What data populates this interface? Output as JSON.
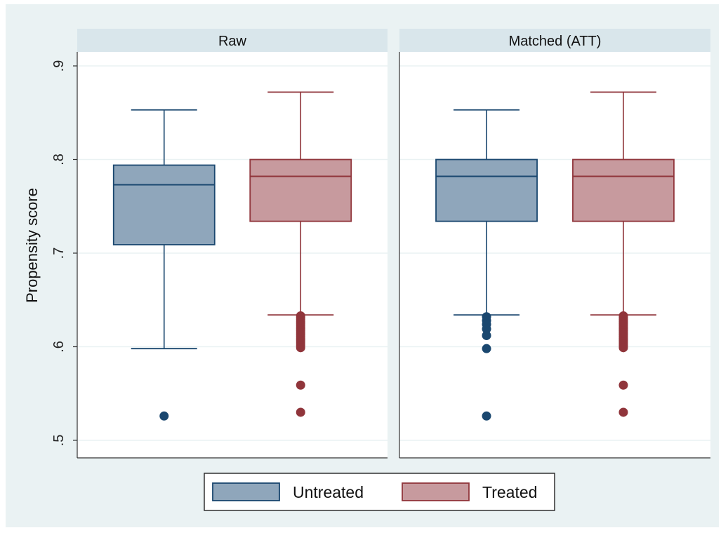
{
  "colors": {
    "outer_background": "#eaf2f3",
    "plot_background": "#ffffff",
    "strip_background": "#d9e6eb",
    "gridline": "#eaf2f3",
    "untreated_fill": "#8fa6bb",
    "untreated_line": "#1a476f",
    "treated_fill": "#c79a9e",
    "treated_line": "#90353b"
  },
  "chart_data": {
    "type": "box",
    "ylabel": "Propensity score",
    "ylim": [
      0.5,
      0.9
    ],
    "yticks": [
      {
        "value": 0.5,
        "label": ".5"
      },
      {
        "value": 0.6,
        "label": ".6"
      },
      {
        "value": 0.7,
        "label": ".7"
      },
      {
        "value": 0.8,
        "label": ".8"
      },
      {
        "value": 0.9,
        "label": ".9"
      }
    ],
    "grid": true,
    "legend_position": "bottom",
    "legend": [
      {
        "label": "Untreated",
        "series": "untreated"
      },
      {
        "label": "Treated",
        "series": "treated"
      }
    ],
    "panels": [
      {
        "title": "Raw",
        "boxes": [
          {
            "series": "untreated",
            "whisker_low": 0.598,
            "q1": 0.709,
            "median": 0.773,
            "q3": 0.794,
            "whisker_high": 0.853,
            "outliers": [
              0.526
            ]
          },
          {
            "series": "treated",
            "whisker_low": 0.634,
            "q1": 0.734,
            "median": 0.782,
            "q3": 0.8,
            "whisker_high": 0.872,
            "outliers": [
              0.633,
              0.631,
              0.629,
              0.627,
              0.625,
              0.623,
              0.621,
              0.619,
              0.617,
              0.615,
              0.613,
              0.611,
              0.609,
              0.607,
              0.605,
              0.603,
              0.601,
              0.599,
              0.559,
              0.53
            ]
          }
        ]
      },
      {
        "title": "Matched (ATT)",
        "boxes": [
          {
            "series": "untreated",
            "whisker_low": 0.634,
            "q1": 0.734,
            "median": 0.782,
            "q3": 0.8,
            "whisker_high": 0.853,
            "outliers": [
              0.632,
              0.628,
              0.624,
              0.619,
              0.612,
              0.598,
              0.526
            ]
          },
          {
            "series": "treated",
            "whisker_low": 0.634,
            "q1": 0.734,
            "median": 0.782,
            "q3": 0.8,
            "whisker_high": 0.872,
            "outliers": [
              0.633,
              0.631,
              0.629,
              0.627,
              0.625,
              0.623,
              0.621,
              0.619,
              0.617,
              0.615,
              0.613,
              0.611,
              0.609,
              0.607,
              0.605,
              0.603,
              0.601,
              0.599,
              0.559,
              0.53
            ]
          }
        ]
      }
    ]
  }
}
